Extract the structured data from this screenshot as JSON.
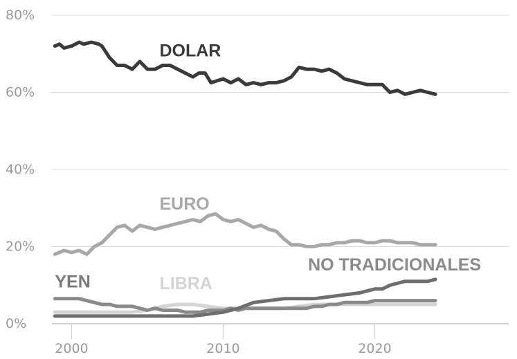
{
  "chart_data": {
    "type": "line",
    "ylim": [
      0,
      80
    ],
    "xlim": [
      1998.7,
      2024.5
    ],
    "y_ticks": [
      {
        "value": 0,
        "label": "0%"
      },
      {
        "value": 20,
        "label": "20%"
      },
      {
        "value": 40,
        "label": "40%"
      },
      {
        "value": 60,
        "label": "60%"
      },
      {
        "value": 80,
        "label": "80%"
      }
    ],
    "x_ticks": [
      {
        "value": 2000,
        "label": "2000"
      },
      {
        "value": 2010,
        "label": "2010"
      },
      {
        "value": 2020,
        "label": "2020"
      }
    ],
    "grid": "horizontal",
    "series": [
      {
        "name": "DOLAR",
        "color": "#3a3a3a",
        "x": [
          1998.9,
          1999.2,
          1999.5,
          2000.0,
          2000.5,
          2000.8,
          2001.3,
          2001.8,
          2002.0,
          2002.5,
          2003.0,
          2003.5,
          2004.0,
          2004.5,
          2005.0,
          2005.5,
          2006.0,
          2006.5,
          2007.0,
          2007.5,
          2008.0,
          2008.4,
          2008.8,
          2009.2,
          2009.6,
          2010.0,
          2010.5,
          2011.0,
          2011.5,
          2012.0,
          2012.5,
          2013.0,
          2013.5,
          2014.0,
          2014.5,
          2015.0,
          2015.5,
          2016.0,
          2016.5,
          2017.0,
          2017.5,
          2018.0,
          2018.5,
          2019.0,
          2019.5,
          2020.0,
          2020.5,
          2021.0,
          2021.5,
          2022.0,
          2022.5,
          2023.0,
          2023.5,
          2024.0
        ],
        "values": [
          72,
          72.5,
          71.5,
          72,
          73,
          72.5,
          73,
          72.5,
          72,
          69,
          67,
          67,
          66,
          68,
          66,
          66,
          67,
          67,
          66,
          65,
          64,
          65,
          65,
          62.5,
          63,
          63.5,
          62.5,
          63.5,
          62,
          62.5,
          62,
          62.5,
          62.5,
          63,
          64,
          66.5,
          66,
          66,
          65.5,
          66,
          65,
          63.5,
          63,
          62.5,
          62,
          62,
          62,
          60,
          60.5,
          59.5,
          60,
          60.5,
          60,
          59.5
        ]
      },
      {
        "name": "EURO",
        "color": "#a8a8a8",
        "x": [
          1998.9,
          1999.5,
          2000.0,
          2000.5,
          2001.0,
          2001.5,
          2002.0,
          2002.5,
          2003.0,
          2003.5,
          2004.0,
          2004.5,
          2005.0,
          2005.5,
          2006.0,
          2006.5,
          2007.0,
          2007.5,
          2008.0,
          2008.5,
          2009.0,
          2009.5,
          2010.0,
          2010.5,
          2011.0,
          2011.5,
          2012.0,
          2012.5,
          2013.0,
          2013.5,
          2014.0,
          2014.5,
          2015.0,
          2015.5,
          2016.0,
          2016.5,
          2017.0,
          2017.5,
          2018.0,
          2018.5,
          2019.0,
          2019.5,
          2020.0,
          2020.5,
          2021.0,
          2021.5,
          2022.0,
          2022.5,
          2023.0,
          2023.5,
          2024.0
        ],
        "values": [
          18,
          19,
          18.5,
          19,
          18,
          20,
          21,
          23,
          25,
          25.5,
          24,
          25.5,
          25,
          24.5,
          25,
          25.5,
          26,
          26.5,
          27,
          26.5,
          28,
          28.5,
          27,
          26.5,
          27,
          26,
          25,
          25.5,
          24.5,
          24,
          22,
          20.5,
          20.5,
          20,
          20,
          20.5,
          20.5,
          21,
          21,
          21.5,
          21.5,
          21,
          21,
          21.5,
          21.5,
          21,
          21,
          21,
          20.5,
          20.5,
          20.5
        ]
      },
      {
        "name": "YEN",
        "color": "#8a8a8a",
        "x": [
          1998.9,
          1999.5,
          2000.0,
          2000.5,
          2001.0,
          2001.5,
          2002.0,
          2002.5,
          2003.0,
          2003.5,
          2004.0,
          2004.5,
          2005.0,
          2005.5,
          2006.0,
          2006.5,
          2007.0,
          2007.5,
          2008.0,
          2008.5,
          2009.0,
          2009.5,
          2010.0,
          2010.5,
          2011.0,
          2011.5,
          2012.0,
          2012.5,
          2013.0,
          2013.5,
          2014.0,
          2014.5,
          2015.0,
          2015.5,
          2016.0,
          2016.5,
          2017.0,
          2017.5,
          2018.0,
          2018.5,
          2019.0,
          2019.5,
          2020.0,
          2020.5,
          2021.0,
          2021.5,
          2022.0,
          2022.5,
          2023.0,
          2023.5,
          2024.0
        ],
        "values": [
          6.5,
          6.5,
          6.5,
          6.5,
          6,
          5.5,
          5,
          5,
          4.5,
          4.5,
          4.5,
          4,
          3.5,
          4,
          3.5,
          3.5,
          3.5,
          3,
          3,
          3,
          3.5,
          3.5,
          3.5,
          4,
          3.5,
          4,
          4,
          4,
          4,
          4,
          4,
          4,
          4,
          4,
          4.5,
          4.5,
          5,
          5,
          5.5,
          5.5,
          5.5,
          5.5,
          6,
          6,
          6,
          6,
          6,
          6,
          6,
          6,
          6
        ]
      },
      {
        "name": "LIBRA",
        "color": "#d4d4d4",
        "x": [
          1998.9,
          2000.0,
          2001.0,
          2002.0,
          2003.0,
          2004.0,
          2005.0,
          2006.0,
          2007.0,
          2008.0,
          2009.0,
          2010.0,
          2011.0,
          2012.0,
          2013.0,
          2014.0,
          2015.0,
          2016.0,
          2017.0,
          2018.0,
          2019.0,
          2020.0,
          2021.0,
          2022.0,
          2023.0,
          2024.0
        ],
        "values": [
          3,
          3,
          3,
          3,
          3,
          3,
          3.5,
          4.5,
          5,
          5,
          4.5,
          4,
          4,
          4,
          4,
          4,
          4.5,
          5,
          5,
          5,
          5,
          5,
          5,
          5,
          5,
          5
        ]
      },
      {
        "name": "NO TRADICIONALES",
        "color": "#6e6e6e",
        "x": [
          1998.9,
          2000.0,
          2001.0,
          2002.0,
          2003.0,
          2004.0,
          2005.0,
          2006.0,
          2007.0,
          2008.0,
          2009.0,
          2010.0,
          2011.0,
          2012.0,
          2013.0,
          2014.0,
          2015.0,
          2016.0,
          2017.0,
          2018.0,
          2019.0,
          2019.5,
          2020.0,
          2020.5,
          2021.0,
          2021.5,
          2022.0,
          2022.5,
          2023.0,
          2023.5,
          2024.0
        ],
        "values": [
          2,
          2,
          2,
          2,
          2,
          2,
          2,
          2,
          2,
          2,
          2.5,
          3,
          4,
          5.5,
          6,
          6.5,
          6.5,
          6.5,
          7,
          7.5,
          8,
          8.5,
          9,
          9,
          10,
          10.5,
          11,
          11,
          11,
          11,
          11.5
        ]
      }
    ],
    "labels": [
      {
        "text": "DOLAR",
        "x": 2005.8,
        "y": 69.3,
        "color": "#3a3a3a"
      },
      {
        "text": "EURO",
        "x": 2005.8,
        "y": 29.6,
        "color": "#a8a8a8"
      },
      {
        "text": "NO TRADICIONALES",
        "x": 2015.6,
        "y": 13.8,
        "color": "#8a8a8a"
      },
      {
        "text": "YEN",
        "x": 1998.9,
        "y": 9.4,
        "color": "#7a7a7a"
      },
      {
        "text": "LIBRA",
        "x": 2005.8,
        "y": 9.0,
        "color": "#d4d4d4"
      }
    ]
  }
}
